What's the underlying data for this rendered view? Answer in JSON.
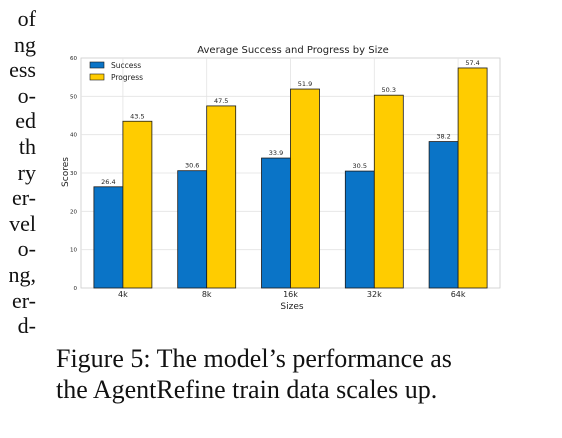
{
  "left_text_fragments": [
    "of",
    "ng",
    "ess",
    "o-",
    "ed",
    "th",
    "ry",
    "er-",
    "vel",
    "o-",
    "ng,",
    "er-",
    "d-"
  ],
  "chart_data": {
    "type": "bar",
    "title": "Average Success and Progress by Size",
    "xlabel": "Sizes",
    "ylabel": "Scores",
    "categories": [
      "4k",
      "8k",
      "16k",
      "32k",
      "64k"
    ],
    "series": [
      {
        "name": "Success",
        "values": [
          26.4,
          30.6,
          33.9,
          30.5,
          38.2
        ],
        "color": "#0a74c7"
      },
      {
        "name": "Progress",
        "values": [
          43.5,
          47.5,
          51.9,
          50.3,
          57.4
        ],
        "color": "#ffcc00"
      }
    ],
    "ylim": [
      0,
      60
    ],
    "yticks": [
      0,
      10,
      20,
      30,
      40,
      50,
      60
    ],
    "grid": true,
    "legend_position": "top-left"
  },
  "caption": {
    "line1": "Figure 5: The model’s performance as",
    "line2": "the AgentRefine train data scales up."
  }
}
